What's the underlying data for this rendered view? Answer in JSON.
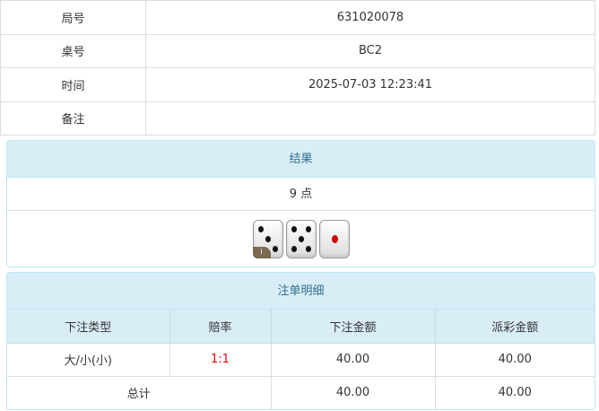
{
  "info": [
    {
      "label": "局号",
      "value": "631020078"
    },
    {
      "label": "桌号",
      "value": "BC2"
    },
    {
      "label": "时间",
      "value": "2025-07-03 12:23:41"
    },
    {
      "label": "备注",
      "value": ""
    }
  ],
  "result": {
    "title": "结果",
    "points": "9 点",
    "dice": [
      3,
      5,
      1
    ],
    "badge": "i"
  },
  "bets": {
    "title": "注单明细",
    "headers": [
      "下注类型",
      "赔率",
      "下注金额",
      "派彩金额"
    ],
    "rows": [
      {
        "type": "大/小(小)",
        "odds": "1:1",
        "amount": "40.00",
        "payout": "40.00"
      }
    ],
    "total": {
      "label": "总计",
      "amount": "40.00",
      "payout": "40.00"
    },
    "odds_color": "#ee0000"
  }
}
